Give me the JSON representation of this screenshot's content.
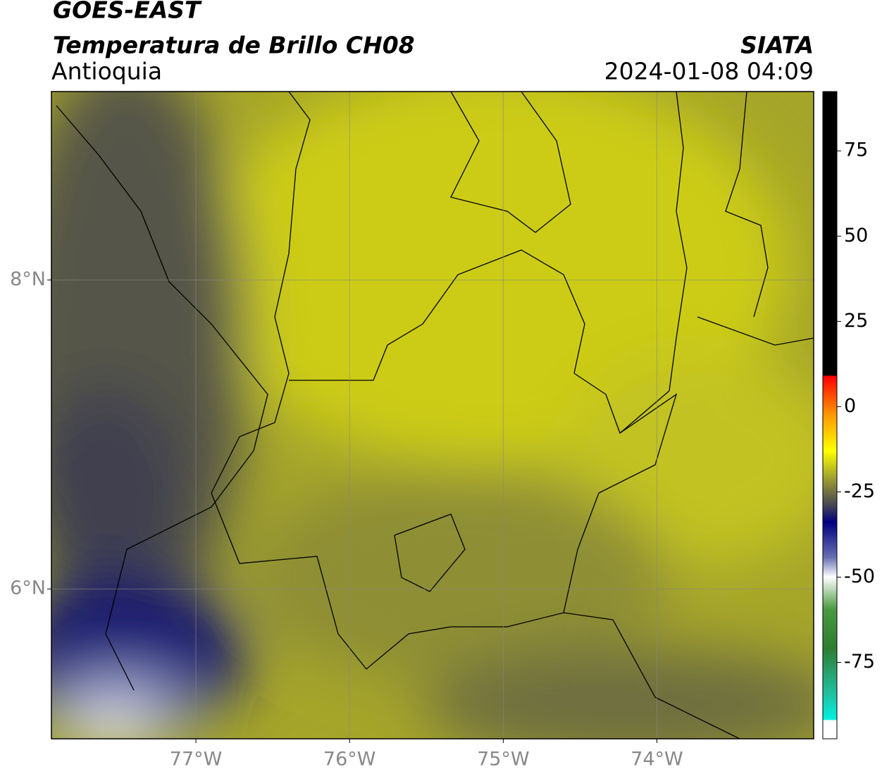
{
  "chart_data": {
    "type": "map",
    "title": "GOES-EAST",
    "subtitle": "Temperatura de Brillo CH08",
    "region": "Antioquia",
    "source": "SIATA",
    "datetime": "2024-01-08 04:09",
    "xlim": [
      -77.94,
      -72.98
    ],
    "ylim": [
      5.03,
      9.22
    ],
    "xticks": [
      {
        "value": -77,
        "label": "77°W"
      },
      {
        "value": -76,
        "label": "76°W"
      },
      {
        "value": -75,
        "label": "75°W"
      },
      {
        "value": -74,
        "label": "74°W"
      }
    ],
    "yticks": [
      {
        "value": 6,
        "label": "6°N"
      },
      {
        "value": 8,
        "label": "8°N"
      }
    ],
    "grid": true,
    "colorbar": {
      "lim": [
        -97.4,
        92.4
      ],
      "ticks": [
        75,
        50,
        25,
        0,
        -25,
        -50,
        -75
      ]
    }
  }
}
